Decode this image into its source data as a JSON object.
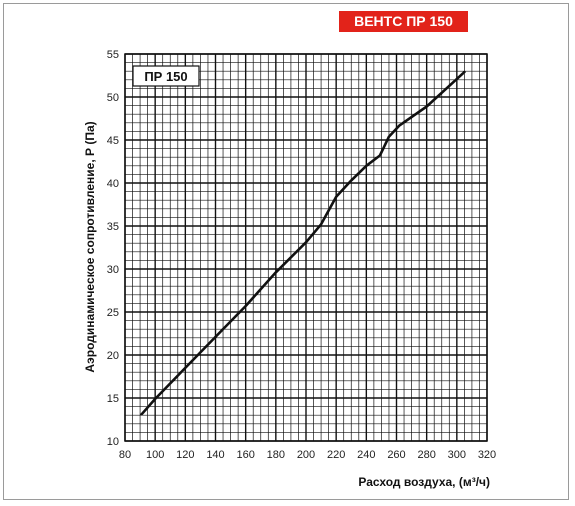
{
  "header": {
    "badge": "ВЕНТС ПР 150"
  },
  "chart_data": {
    "type": "line",
    "label": "ПР 150",
    "xlabel": "Расход воздуха, (м³/ч)",
    "ylabel": "Аэродинамическое сопротивление, Р (Па)",
    "xlim": [
      80,
      320
    ],
    "ylim": [
      10,
      55
    ],
    "x_ticks": [
      80,
      100,
      120,
      140,
      160,
      180,
      200,
      220,
      240,
      260,
      280,
      300,
      320
    ],
    "y_ticks": [
      10,
      15,
      20,
      25,
      30,
      35,
      40,
      45,
      50,
      55
    ],
    "grid": true,
    "series": [
      {
        "x": [
          91,
          100,
          120,
          140,
          160,
          180,
          200,
          210,
          220,
          230,
          240,
          249,
          255,
          262,
          280,
          305
        ],
        "y": [
          13.1,
          14.9,
          18.5,
          22.1,
          25.7,
          29.6,
          33.1,
          35.2,
          38.4,
          40.3,
          42,
          43.2,
          45.4,
          46.7,
          48.9,
          52.9
        ]
      }
    ],
    "colors": {
      "line": "#111111",
      "grid": "#111111",
      "badge": "#e2231a"
    }
  }
}
